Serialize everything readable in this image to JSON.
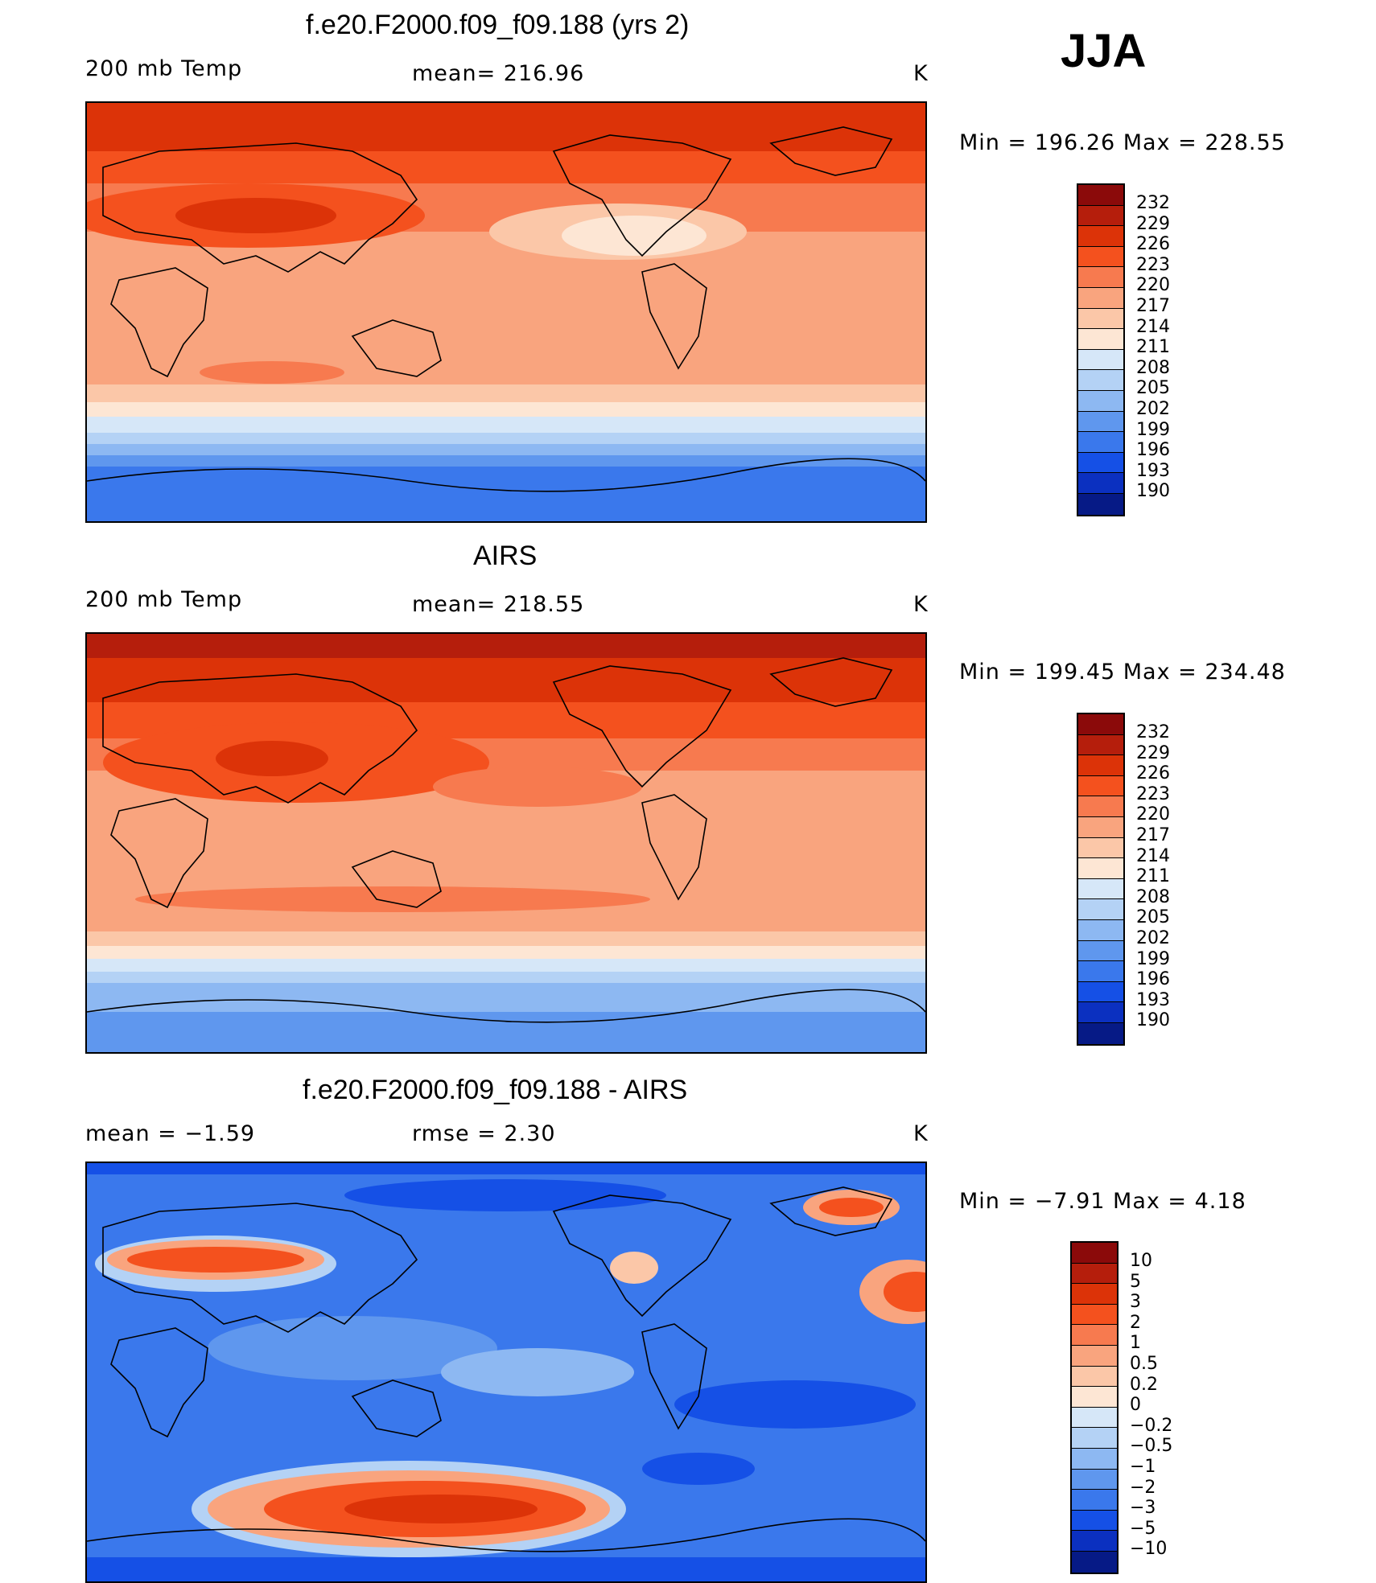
{
  "season": "JJA",
  "panels": [
    {
      "title": "f.e20.F2000.f09_f09.188 (yrs 2)",
      "left_label": "200 mb Temp",
      "center_label": "mean=  216.96",
      "units": "K",
      "minmax": "Min  =  196.26  Max  =  228.55",
      "colorbar_ticks": [
        "232",
        "229",
        "226",
        "223",
        "220",
        "217",
        "214",
        "211",
        "208",
        "205",
        "202",
        "199",
        "196",
        "193",
        "190"
      ]
    },
    {
      "title": "AIRS",
      "left_label": "200 mb Temp",
      "center_label": "mean=  218.55",
      "units": "K",
      "minmax": "Min  =  199.45  Max  =  234.48",
      "colorbar_ticks": [
        "232",
        "229",
        "226",
        "223",
        "220",
        "217",
        "214",
        "211",
        "208",
        "205",
        "202",
        "199",
        "196",
        "193",
        "190"
      ]
    },
    {
      "title": "f.e20.F2000.f09_f09.188 - AIRS",
      "left_label": "mean  =    −1.59",
      "center_label": "rmse  =     2.30",
      "units": "K",
      "minmax": "Min  =    −7.91  Max  =      4.18",
      "colorbar_ticks": [
        "10",
        "5",
        "3",
        "2",
        "1",
        "0.5",
        "0.2",
        "0",
        "−0.2",
        "−0.5",
        "−1",
        "−2",
        "−3",
        "−5",
        "−10"
      ]
    }
  ],
  "colors": {
    "scale16": [
      "#8b0a0a",
      "#b51e0c",
      "#dc3308",
      "#f4511e",
      "#f77a4f",
      "#f9a47e",
      "#fbc7a8",
      "#fde6d4",
      "#d6e7f8",
      "#b4d2f5",
      "#8db8f2",
      "#5f97ee",
      "#3a78ec",
      "#1550e6",
      "#0b30c0",
      "#061a86"
    ]
  }
}
